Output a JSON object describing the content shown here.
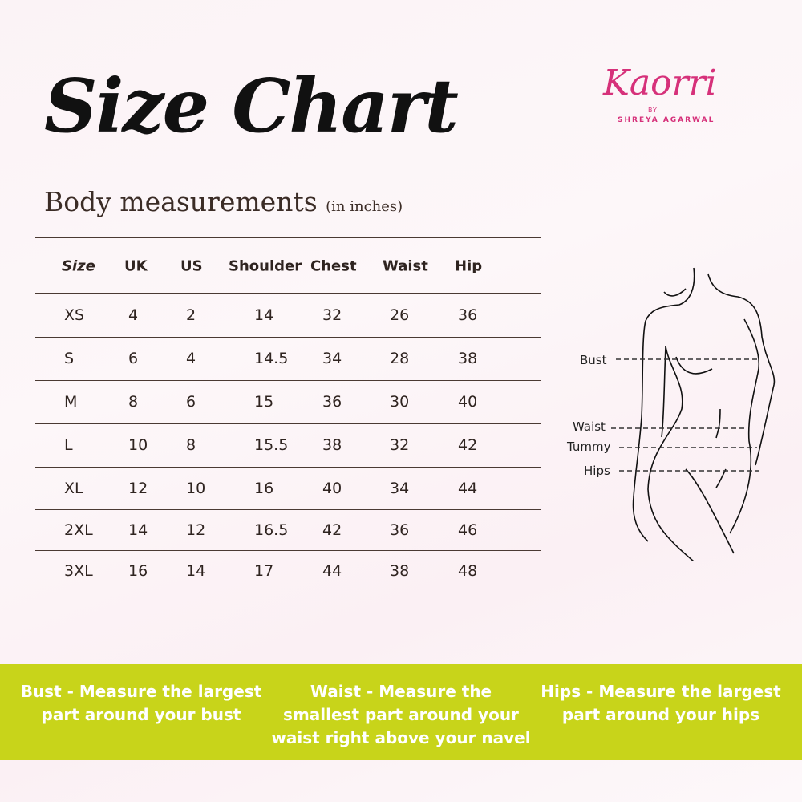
{
  "title": "Size Chart",
  "subtitle": "Body measurements",
  "unit": "(in inches)",
  "logo": {
    "name": "Kaorri",
    "by": "BY",
    "brand": "SHREYA AGARWAL",
    "color": "#d6317a"
  },
  "table": {
    "headers": [
      "Size",
      "UK",
      "US",
      "Shoulder",
      "Chest",
      "Waist",
      "Hip"
    ],
    "rows": [
      [
        "XS",
        "4",
        "2",
        "14",
        "32",
        "26",
        "36"
      ],
      [
        "S",
        "6",
        "4",
        "14.5",
        "34",
        "28",
        "38"
      ],
      [
        "M",
        "8",
        "6",
        "15",
        "36",
        "30",
        "40"
      ],
      [
        "L",
        "10",
        "8",
        "15.5",
        "38",
        "32",
        "42"
      ],
      [
        "XL",
        "12",
        "10",
        "16",
        "40",
        "34",
        "44"
      ],
      [
        "2XL",
        "14",
        "12",
        "16.5",
        "42",
        "36",
        "46"
      ],
      [
        "3XL",
        "16",
        "14",
        "17",
        "44",
        "38",
        "48"
      ]
    ]
  },
  "figure": {
    "labels": [
      "Bust",
      "Waist",
      "Tummy",
      "Hips"
    ]
  },
  "notes": [
    {
      "term": "Bust -",
      "text": "Measure the largest part around your bust"
    },
    {
      "term": "Waist -",
      "text": "Measure the smallest part around your waist right above your navel"
    },
    {
      "term": "Hips -",
      "text": "Measure the largest part around your hips"
    }
  ],
  "colors": {
    "band": "#c8d41a",
    "accent": "#d6317a"
  }
}
